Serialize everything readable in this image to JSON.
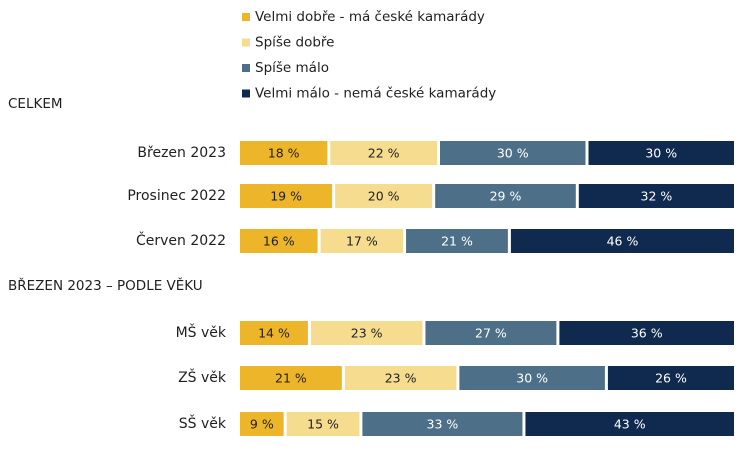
{
  "chart_data": {
    "type": "bar",
    "orientation": "horizontal",
    "stacked": true,
    "percent_suffix": " %",
    "legend": [
      {
        "label": "Velmi dobře - má české kamarády",
        "color": "#ecb52a"
      },
      {
        "label": "Spíše dobře",
        "color": "#f5dc8e"
      },
      {
        "label": "Spíše málo",
        "color": "#4d7088"
      },
      {
        "label": "Velmi málo - nemá české kamarády",
        "color": "#0f2a4e"
      }
    ],
    "legend_placement": "top-center",
    "label_colors": [
      "#1f1f1f",
      "#1f1f1f",
      "#ffffff",
      "#ffffff"
    ],
    "groups": [
      {
        "title": "CELKEM",
        "rows": [
          {
            "label": "Březen 2023",
            "values": [
              18,
              22,
              30,
              30
            ]
          },
          {
            "label": "Prosinec 2022",
            "values": [
              19,
              20,
              29,
              32
            ]
          },
          {
            "label": "Červen 2022",
            "values": [
              16,
              17,
              21,
              46
            ]
          }
        ]
      },
      {
        "title": "BŘEZEN 2023 – PODLE VĚKU",
        "rows": [
          {
            "label": "MŠ věk",
            "values": [
              14,
              23,
              27,
              36
            ]
          },
          {
            "label": "ZŠ věk",
            "values": [
              21,
              23,
              30,
              26
            ]
          },
          {
            "label": "SŠ věk",
            "values": [
              9,
              15,
              33,
              43
            ]
          }
        ]
      }
    ],
    "xlim": [
      0,
      100
    ]
  }
}
